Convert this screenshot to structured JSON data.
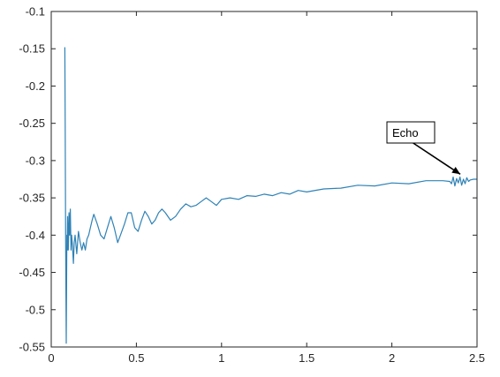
{
  "chart_data": {
    "type": "line",
    "title": "",
    "xlabel": "",
    "ylabel": "",
    "xlim": [
      0,
      2.5
    ],
    "ylim": [
      -0.55,
      -0.1
    ],
    "grid": false,
    "x_ticks": [
      0,
      0.5,
      1,
      1.5,
      2,
      2.5
    ],
    "x_tick_labels": [
      "0",
      "0.5",
      "1",
      "1.5",
      "2",
      "2.5"
    ],
    "y_ticks": [
      -0.1,
      -0.15,
      -0.2,
      -0.25,
      -0.3,
      -0.35,
      -0.4,
      -0.45,
      -0.5,
      -0.55
    ],
    "y_tick_labels": [
      "-0.1",
      "-0.15",
      "-0.2",
      "-0.25",
      "-0.3",
      "-0.35",
      "-0.4",
      "-0.45",
      "-0.5",
      "-0.55"
    ],
    "series": [
      {
        "color": "#2f82b6",
        "x": [
          0.08,
          0.082,
          0.084,
          0.086,
          0.088,
          0.09,
          0.092,
          0.094,
          0.096,
          0.1,
          0.104,
          0.108,
          0.112,
          0.116,
          0.12,
          0.125,
          0.13,
          0.135,
          0.14,
          0.15,
          0.16,
          0.17,
          0.18,
          0.19,
          0.2,
          0.21,
          0.22,
          0.23,
          0.24,
          0.25,
          0.27,
          0.29,
          0.31,
          0.33,
          0.35,
          0.37,
          0.39,
          0.41,
          0.43,
          0.45,
          0.47,
          0.49,
          0.51,
          0.53,
          0.55,
          0.57,
          0.59,
          0.61,
          0.63,
          0.65,
          0.67,
          0.7,
          0.73,
          0.76,
          0.79,
          0.82,
          0.85,
          0.88,
          0.91,
          0.94,
          0.97,
          1.0,
          1.05,
          1.1,
          1.15,
          1.2,
          1.25,
          1.3,
          1.35,
          1.4,
          1.45,
          1.5,
          1.6,
          1.7,
          1.8,
          1.9,
          2.0,
          2.1,
          2.2,
          2.3,
          2.34,
          2.35,
          2.36,
          2.37,
          2.38,
          2.39,
          2.4,
          2.41,
          2.42,
          2.43,
          2.44,
          2.45,
          2.46,
          2.48,
          2.5
        ],
        "y": [
          -0.148,
          -0.25,
          -0.38,
          -0.47,
          -0.545,
          -0.46,
          -0.4,
          -0.42,
          -0.375,
          -0.42,
          -0.37,
          -0.4,
          -0.365,
          -0.42,
          -0.4,
          -0.415,
          -0.438,
          -0.41,
          -0.4,
          -0.425,
          -0.395,
          -0.41,
          -0.42,
          -0.41,
          -0.42,
          -0.405,
          -0.4,
          -0.39,
          -0.38,
          -0.372,
          -0.385,
          -0.4,
          -0.405,
          -0.39,
          -0.375,
          -0.39,
          -0.41,
          -0.398,
          -0.385,
          -0.37,
          -0.37,
          -0.39,
          -0.395,
          -0.38,
          -0.368,
          -0.375,
          -0.385,
          -0.38,
          -0.37,
          -0.365,
          -0.37,
          -0.38,
          -0.375,
          -0.365,
          -0.358,
          -0.362,
          -0.36,
          -0.355,
          -0.35,
          -0.355,
          -0.36,
          -0.352,
          -0.35,
          -0.352,
          -0.347,
          -0.348,
          -0.345,
          -0.347,
          -0.343,
          -0.345,
          -0.34,
          -0.342,
          -0.338,
          -0.337,
          -0.333,
          -0.334,
          -0.33,
          -0.331,
          -0.327,
          -0.327,
          -0.328,
          -0.331,
          -0.322,
          -0.334,
          -0.324,
          -0.33,
          -0.322,
          -0.333,
          -0.325,
          -0.331,
          -0.323,
          -0.328,
          -0.326,
          -0.325,
          -0.325
        ]
      }
    ],
    "annotations": [
      {
        "text": "Echo",
        "x": 2.36,
        "y": -0.323
      }
    ]
  }
}
